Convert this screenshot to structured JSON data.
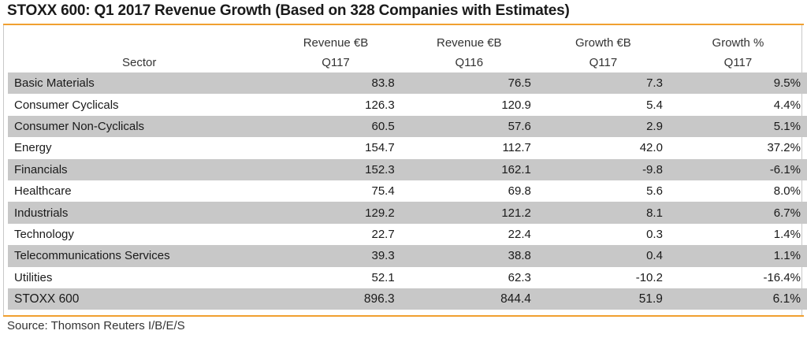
{
  "title": "STOXX 600: Q1 2017 Revenue Growth (Based on 328 Companies with Estimates)",
  "source": "Source: Thomson Reuters I/B/E/S",
  "colors": {
    "accent_rule": "#f0a030",
    "row_shade": "#c8c8c8"
  },
  "header": {
    "sector": "Sector",
    "rev_q117_l1": "Revenue €B",
    "rev_q117_l2": "Q117",
    "rev_q116_l1": "Revenue €B",
    "rev_q116_l2": "Q116",
    "growth_eur_l1": "Growth €B",
    "growth_eur_l2": "Q117",
    "growth_pct_l1": "Growth %",
    "growth_pct_l2": "Q117"
  },
  "rows": [
    {
      "sector": "Basic Materials",
      "rev_q117": "83.8",
      "rev_q116": "76.5",
      "growth_eur": "7.3",
      "growth_pct": "9.5%"
    },
    {
      "sector": "Consumer Cyclicals",
      "rev_q117": "126.3",
      "rev_q116": "120.9",
      "growth_eur": "5.4",
      "growth_pct": "4.4%"
    },
    {
      "sector": "Consumer Non-Cyclicals",
      "rev_q117": "60.5",
      "rev_q116": "57.6",
      "growth_eur": "2.9",
      "growth_pct": "5.1%"
    },
    {
      "sector": "Energy",
      "rev_q117": "154.7",
      "rev_q116": "112.7",
      "growth_eur": "42.0",
      "growth_pct": "37.2%"
    },
    {
      "sector": "Financials",
      "rev_q117": "152.3",
      "rev_q116": "162.1",
      "growth_eur": "-9.8",
      "growth_pct": "-6.1%"
    },
    {
      "sector": "Healthcare",
      "rev_q117": "75.4",
      "rev_q116": "69.8",
      "growth_eur": "5.6",
      "growth_pct": "8.0%"
    },
    {
      "sector": "Industrials",
      "rev_q117": "129.2",
      "rev_q116": "121.2",
      "growth_eur": "8.1",
      "growth_pct": "6.7%"
    },
    {
      "sector": "Technology",
      "rev_q117": "22.7",
      "rev_q116": "22.4",
      "growth_eur": "0.3",
      "growth_pct": "1.4%"
    },
    {
      "sector": "Telecommunications Services",
      "rev_q117": "39.3",
      "rev_q116": "38.8",
      "growth_eur": "0.4",
      "growth_pct": "1.1%"
    },
    {
      "sector": "Utilities",
      "rev_q117": "52.1",
      "rev_q116": "62.3",
      "growth_eur": "-10.2",
      "growth_pct": "-16.4%"
    }
  ],
  "total": {
    "sector": "STOXX 600",
    "rev_q117": "896.3",
    "rev_q116": "844.4",
    "growth_eur": "51.9",
    "growth_pct": "6.1%"
  }
}
